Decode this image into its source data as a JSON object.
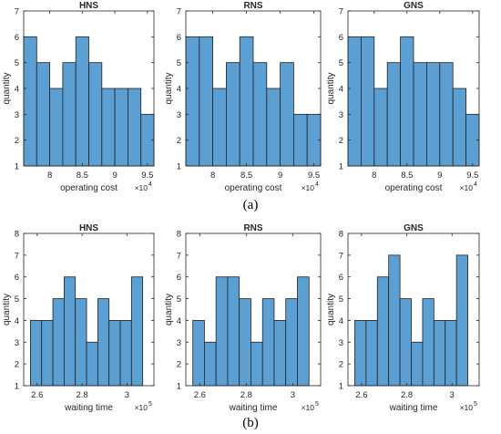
{
  "captions": [
    "(a)",
    "(b)"
  ],
  "colors": {
    "bar_fill": "#5b9fd3",
    "bar_edge": "#222222",
    "axis": "#262626"
  },
  "chart_data": [
    {
      "type": "bar",
      "title": "HNS",
      "xlabel": "operating cost",
      "ylabel": "quantity",
      "x_multiplier": "×10",
      "x_multiplier_exponent": "4",
      "bin_edges": [
        76000,
        78000,
        80000,
        82000,
        84000,
        86000,
        88000,
        90000,
        92000,
        94000,
        96000
      ],
      "values": [
        6,
        5,
        4,
        5,
        6,
        5,
        4,
        4,
        4,
        3
      ],
      "xlim": [
        76000,
        96000
      ],
      "ylim": [
        1,
        7
      ],
      "xticks": [
        80000,
        85000,
        90000,
        95000
      ],
      "xtick_labels": [
        "8",
        "8.5",
        "9",
        "9.5"
      ],
      "yticks": [
        1,
        2,
        3,
        4,
        5,
        6,
        7
      ],
      "ytick_labels": [
        "1",
        "2",
        "3",
        "4",
        "5",
        "6",
        "7"
      ]
    },
    {
      "type": "bar",
      "title": "RNS",
      "xlabel": "operating cost",
      "ylabel": "quantity",
      "x_multiplier": "×10",
      "x_multiplier_exponent": "4",
      "bin_edges": [
        76000,
        78000,
        80000,
        82000,
        84000,
        86000,
        88000,
        90000,
        92000,
        94000,
        96000
      ],
      "values": [
        6,
        6,
        4,
        5,
        6,
        5,
        4,
        5,
        3,
        3
      ],
      "xlim": [
        76000,
        96000
      ],
      "ylim": [
        1,
        7
      ],
      "xticks": [
        80000,
        85000,
        90000,
        95000
      ],
      "xtick_labels": [
        "8",
        "8.5",
        "9",
        "9.5"
      ],
      "yticks": [
        1,
        2,
        3,
        4,
        5,
        6,
        7
      ],
      "ytick_labels": [
        "1",
        "2",
        "3",
        "4",
        "5",
        "6",
        "7"
      ]
    },
    {
      "type": "bar",
      "title": "GNS",
      "xlabel": "operating cost",
      "ylabel": "quantity",
      "x_multiplier": "×10",
      "x_multiplier_exponent": "4",
      "bin_edges": [
        76000,
        78000,
        80000,
        82000,
        84000,
        86000,
        88000,
        90000,
        92000,
        94000,
        96000
      ],
      "values": [
        6,
        6,
        4,
        5,
        6,
        5,
        5,
        5,
        4,
        3
      ],
      "xlim": [
        76000,
        96000
      ],
      "ylim": [
        1,
        7
      ],
      "xticks": [
        80000,
        85000,
        90000,
        95000
      ],
      "xtick_labels": [
        "8",
        "8.5",
        "9",
        "9.5"
      ],
      "yticks": [
        1,
        2,
        3,
        4,
        5,
        6,
        7
      ],
      "ytick_labels": [
        "1",
        "2",
        "3",
        "4",
        "5",
        "6",
        "7"
      ]
    },
    {
      "type": "bar",
      "title": "HNS",
      "xlabel": "waiting time",
      "ylabel": "quantity",
      "x_multiplier": "×10",
      "x_multiplier_exponent": "5",
      "bin_edges": [
        257000,
        262000,
        267000,
        272000,
        277000,
        282000,
        287000,
        292000,
        297000,
        302000,
        307000
      ],
      "values": [
        4,
        4,
        5,
        6,
        5,
        3,
        5,
        4,
        4,
        6
      ],
      "xlim": [
        254000,
        312000
      ],
      "ylim": [
        1,
        8
      ],
      "xticks": [
        260000,
        280000,
        300000
      ],
      "xtick_labels": [
        "2.6",
        "2.8",
        "3"
      ],
      "yticks": [
        1,
        2,
        3,
        4,
        5,
        6,
        7,
        8
      ],
      "ytick_labels": [
        "1",
        "2",
        "3",
        "4",
        "5",
        "6",
        "7",
        "8"
      ]
    },
    {
      "type": "bar",
      "title": "RNS",
      "xlabel": "waiting time",
      "ylabel": "quantity",
      "x_multiplier": "×10",
      "x_multiplier_exponent": "5",
      "bin_edges": [
        257000,
        262000,
        267000,
        272000,
        277000,
        282000,
        287000,
        292000,
        297000,
        302000,
        307000
      ],
      "values": [
        4,
        3,
        6,
        6,
        5,
        3,
        5,
        4,
        5,
        6
      ],
      "xlim": [
        254000,
        312000
      ],
      "ylim": [
        1,
        8
      ],
      "xticks": [
        260000,
        280000,
        300000
      ],
      "xtick_labels": [
        "2.6",
        "2.8",
        "3"
      ],
      "yticks": [
        1,
        2,
        3,
        4,
        5,
        6,
        7,
        8
      ],
      "ytick_labels": [
        "1",
        "2",
        "3",
        "4",
        "5",
        "6",
        "7",
        "8"
      ]
    },
    {
      "type": "bar",
      "title": "GNS",
      "xlabel": "waiting time",
      "ylabel": "quantity",
      "x_multiplier": "×10",
      "x_multiplier_exponent": "5",
      "bin_edges": [
        257000,
        262000,
        267000,
        272000,
        277000,
        282000,
        287000,
        292000,
        297000,
        302000,
        307000
      ],
      "values": [
        4,
        4,
        6,
        7,
        5,
        3,
        5,
        4,
        4,
        7
      ],
      "xlim": [
        254000,
        312000
      ],
      "ylim": [
        1,
        8
      ],
      "xticks": [
        260000,
        280000,
        300000
      ],
      "xtick_labels": [
        "2.6",
        "2.8",
        "3"
      ],
      "yticks": [
        1,
        2,
        3,
        4,
        5,
        6,
        7,
        8
      ],
      "ytick_labels": [
        "1",
        "2",
        "3",
        "4",
        "5",
        "6",
        "7",
        "8"
      ]
    }
  ]
}
